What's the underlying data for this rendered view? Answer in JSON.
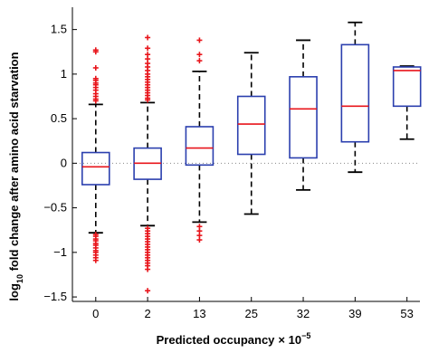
{
  "chart_data": {
    "type": "box",
    "xlabel": "Predicted occupancy",
    "xlabel_suffix": "× 10",
    "xlabel_exponent": "−5",
    "ylabel_prefix": "log",
    "ylabel_subscript": "10",
    "ylabel_rest": " fold change after amino acid starvation",
    "ylim": [
      -1.55,
      1.75
    ],
    "yticks": [
      -1.5,
      -1,
      -0.5,
      0,
      0.5,
      1,
      1.5
    ],
    "ytick_labels": [
      "−1.5",
      "−1",
      "−0.5",
      "0",
      "0.5",
      "1",
      "1.5"
    ],
    "reference_line": 0,
    "colors": {
      "box": "#2b3fae",
      "median": "#e8151b",
      "whisker": "#000000",
      "outlier": "#e8151b",
      "reference": "#888888"
    },
    "categories": [
      "0",
      "2",
      "13",
      "25",
      "32",
      "39",
      "53"
    ],
    "boxes": [
      {
        "category": "0",
        "whislo": -0.78,
        "q1": -0.24,
        "med": -0.04,
        "q3": 0.12,
        "whishi": 0.66,
        "outliers": [
          1.27,
          1.25,
          1.07,
          0.95,
          0.93,
          0.9,
          0.88,
          0.85,
          0.82,
          0.78,
          0.75,
          0.72,
          0.7,
          -0.8,
          -0.82,
          -0.85,
          -0.87,
          -0.9,
          -0.92,
          -0.95,
          -0.98,
          -1.0,
          -1.03,
          -1.06,
          -1.09
        ]
      },
      {
        "category": "2",
        "whislo": -0.7,
        "q1": -0.18,
        "med": 0.0,
        "q3": 0.17,
        "whishi": 0.68,
        "outliers": [
          1.41,
          1.29,
          1.22,
          1.17,
          1.12,
          1.08,
          1.04,
          1.0,
          0.97,
          0.94,
          0.91,
          0.88,
          0.85,
          0.82,
          0.79,
          0.76,
          0.73,
          0.71,
          -0.73,
          -0.76,
          -0.79,
          -0.82,
          -0.85,
          -0.88,
          -0.91,
          -0.94,
          -0.97,
          -1.0,
          -1.03,
          -1.06,
          -1.09,
          -1.12,
          -1.15,
          -1.19,
          -1.43
        ]
      },
      {
        "category": "13",
        "whislo": -0.66,
        "q1": -0.02,
        "med": 0.17,
        "q3": 0.41,
        "whishi": 1.03,
        "outliers": [
          1.38,
          1.22,
          1.15,
          -0.71,
          -0.76,
          -0.81,
          -0.86
        ]
      },
      {
        "category": "25",
        "whislo": -0.57,
        "q1": 0.1,
        "med": 0.44,
        "q3": 0.75,
        "whishi": 1.24,
        "outliers": []
      },
      {
        "category": "32",
        "whislo": -0.3,
        "q1": 0.06,
        "med": 0.61,
        "q3": 0.97,
        "whishi": 1.38,
        "outliers": []
      },
      {
        "category": "39",
        "whislo": -0.1,
        "q1": 0.24,
        "med": 0.64,
        "q3": 1.33,
        "whishi": 1.58,
        "outliers": []
      },
      {
        "category": "53",
        "whislo": 0.27,
        "q1": 0.64,
        "med": 1.04,
        "q3": 1.08,
        "whishi": 1.09,
        "outliers": []
      }
    ]
  }
}
